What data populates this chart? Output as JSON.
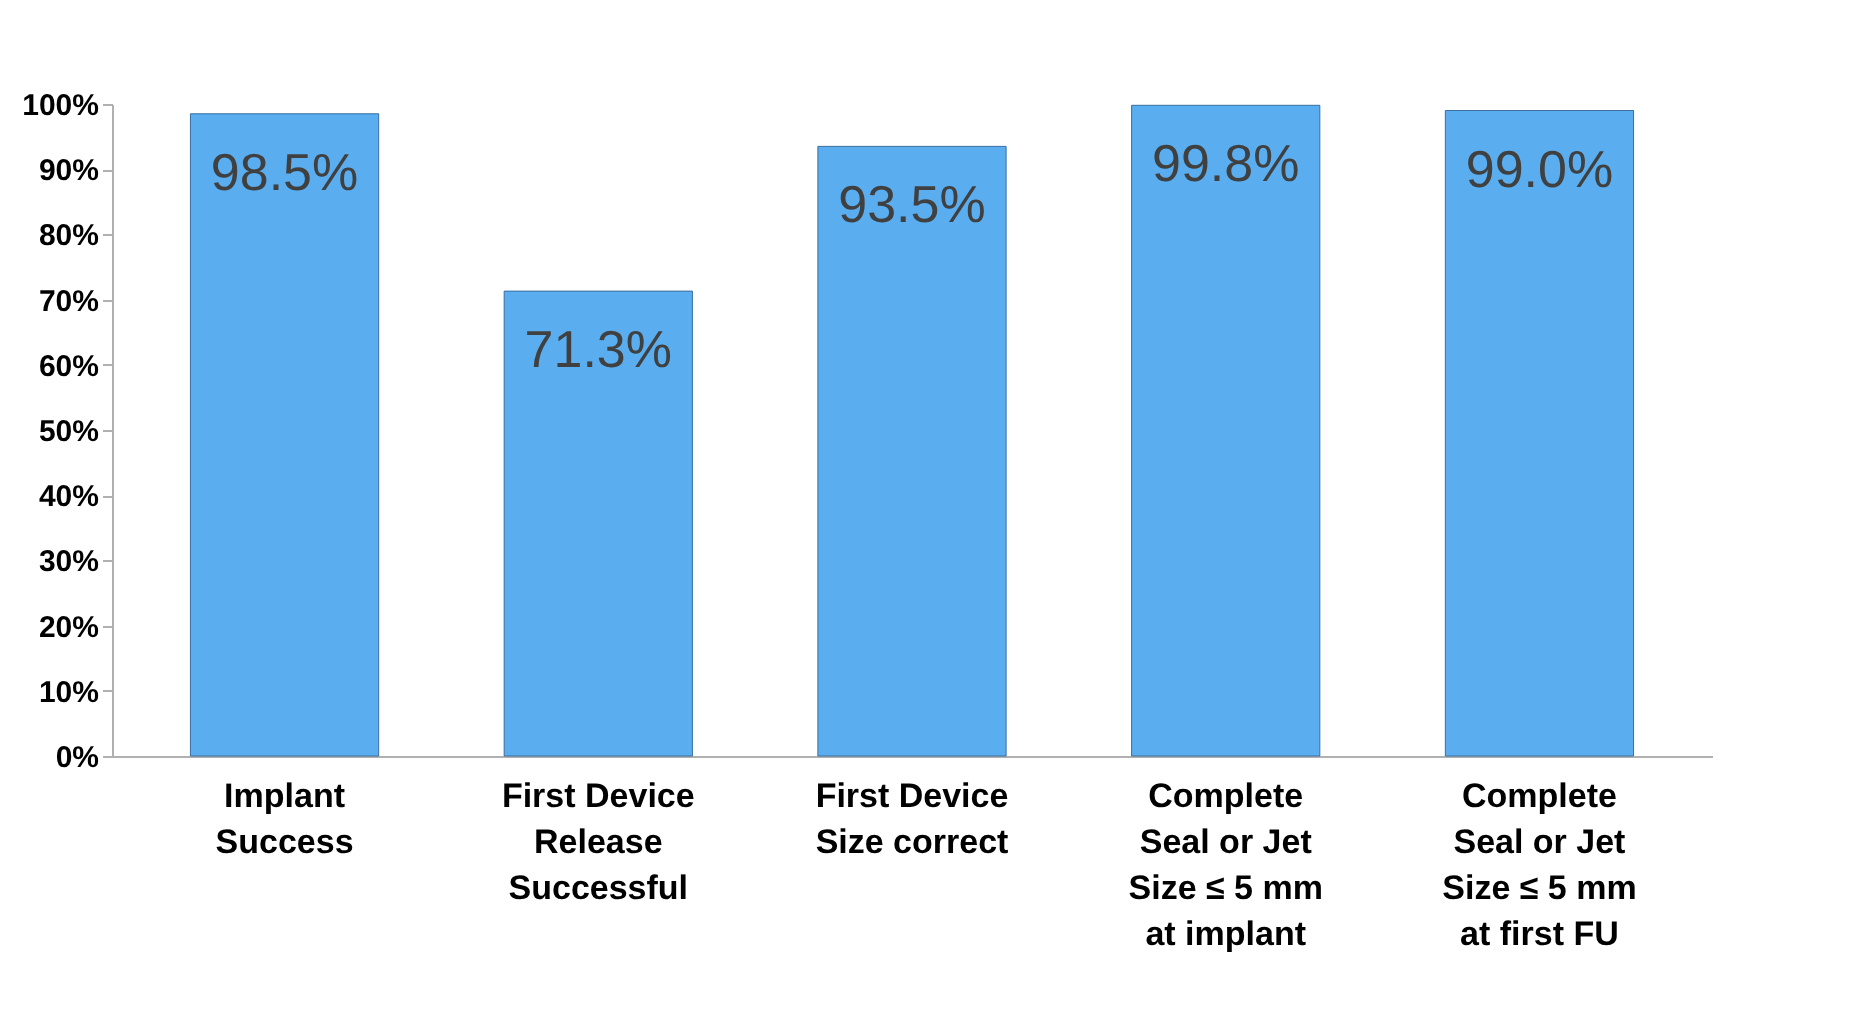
{
  "chart_data": {
    "type": "bar",
    "categories": [
      "Implant\nSuccess",
      "First Device\nRelease\nSuccessful",
      "First Device\nSize  correct",
      "Complete\nSeal or Jet\nSize ≤ 5 mm\nat implant",
      "Complete\nSeal or Jet\nSize ≤ 5 mm\nat first FU"
    ],
    "values": [
      98.5,
      71.3,
      93.5,
      99.8,
      99.0
    ],
    "value_labels": [
      "98.5%",
      "71.3%",
      "93.5%",
      "99.8%",
      "99.0%"
    ],
    "color": "#5aaef0",
    "ylim": [
      0,
      100
    ],
    "yticks": [
      {
        "value": 0,
        "label": "0%"
      },
      {
        "value": 10,
        "label": "10%"
      },
      {
        "value": 20,
        "label": "20%"
      },
      {
        "value": 30,
        "label": "30%"
      },
      {
        "value": 40,
        "label": "40%"
      },
      {
        "value": 50,
        "label": "50%"
      },
      {
        "value": 60,
        "label": "60%"
      },
      {
        "value": 70,
        "label": "70%"
      },
      {
        "value": 80,
        "label": "80%"
      },
      {
        "value": 90,
        "label": "90%"
      },
      {
        "value": 100,
        "label": "100%"
      }
    ],
    "grid": false
  }
}
